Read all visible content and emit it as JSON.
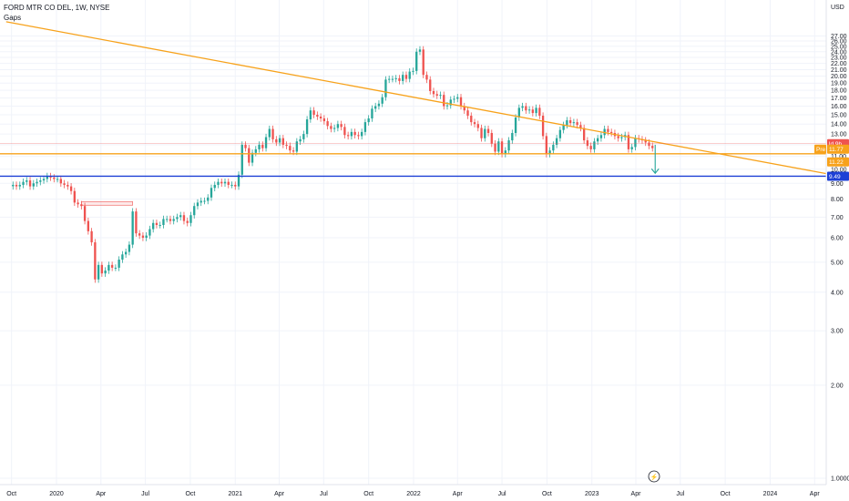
{
  "header": {
    "symbol_line": "FORD MTR CO DEL, 1W, NYSE",
    "indicator": "Gaps"
  },
  "colors": {
    "up": "#26a69a",
    "down": "#ef5350",
    "trendline": "#f7a21b",
    "support": "#f7a21b",
    "level": "#1e40d6",
    "grid": "#f0f3fa"
  },
  "labels": {
    "lightning_icon": "⚡",
    "badge_red_text": "ld 9h",
    "badge_pre_label": "Pre",
    "badge_pre_value": "11.77",
    "badge_support_value": "11.22",
    "badge_level_value": "9.49"
  },
  "chart_data": {
    "type": "candlestick",
    "title": "FORD MTR CO DEL, 1W, NYSE",
    "y_axis_unit": "USD",
    "y_scale": "log",
    "ylim": [
      0.9,
      28.5
    ],
    "y_ticks": [
      "1.0000",
      "2.00",
      "3.00",
      "4.00",
      "5.00",
      "6.00",
      "7.00",
      "8.00",
      "9.00",
      "10.00",
      "11.00",
      "12.00",
      "13.00",
      "14.00",
      "15.00",
      "16.00",
      "17.00",
      "18.00",
      "19.00",
      "20.00",
      "21.00",
      "22.00",
      "23.00",
      "24.00",
      "25.00",
      "26.00",
      "27.00"
    ],
    "x_ticks": [
      "Oct",
      "2020",
      "Apr",
      "Jul",
      "Oct",
      "2021",
      "Apr",
      "Jul",
      "Oct",
      "2022",
      "Apr",
      "Jul",
      "Oct",
      "2023",
      "Apr",
      "Jul",
      "Oct",
      "2024",
      "Apr"
    ],
    "series": [
      {
        "points": [
          [
            "2019-10-04",
            8.9
          ],
          [
            "2019-10-11",
            8.8
          ],
          [
            "2019-10-18",
            8.9
          ],
          [
            "2019-10-25",
            9.1
          ],
          [
            "2019-11-01",
            9.2
          ],
          [
            "2019-11-08",
            8.8
          ],
          [
            "2019-11-15",
            9.0
          ],
          [
            "2019-11-22",
            9.1
          ],
          [
            "2019-11-29",
            9.2
          ],
          [
            "2019-12-06",
            9.3
          ],
          [
            "2019-12-13",
            9.5
          ],
          [
            "2019-12-20",
            9.4
          ],
          [
            "2019-12-27",
            9.3
          ],
          [
            "2020-01-03",
            9.3
          ],
          [
            "2020-01-10",
            9.0
          ],
          [
            "2020-01-17",
            8.9
          ],
          [
            "2020-01-24",
            8.8
          ],
          [
            "2020-01-31",
            8.5
          ],
          [
            "2020-02-07",
            7.8
          ],
          [
            "2020-02-14",
            7.7
          ],
          [
            "2020-02-21",
            7.6
          ],
          [
            "2020-02-28",
            6.8
          ],
          [
            "2020-03-06",
            6.3
          ],
          [
            "2020-03-13",
            5.8
          ],
          [
            "2020-03-20",
            4.4
          ],
          [
            "2020-03-27",
            4.9
          ],
          [
            "2020-04-03",
            4.6
          ],
          [
            "2020-04-10",
            4.7
          ],
          [
            "2020-04-17",
            4.9
          ],
          [
            "2020-04-24",
            4.8
          ],
          [
            "2020-05-01",
            4.8
          ],
          [
            "2020-05-08",
            5.1
          ],
          [
            "2020-05-15",
            5.3
          ],
          [
            "2020-05-22",
            5.4
          ],
          [
            "2020-05-29",
            5.7
          ],
          [
            "2020-06-05",
            7.3
          ],
          [
            "2020-06-12",
            6.2
          ],
          [
            "2020-06-19",
            6.1
          ],
          [
            "2020-06-26",
            6.0
          ],
          [
            "2020-07-03",
            6.1
          ],
          [
            "2020-07-10",
            6.4
          ],
          [
            "2020-07-17",
            6.7
          ],
          [
            "2020-07-24",
            6.6
          ],
          [
            "2020-07-31",
            6.6
          ],
          [
            "2020-08-07",
            6.9
          ],
          [
            "2020-08-14",
            6.9
          ],
          [
            "2020-08-21",
            6.8
          ],
          [
            "2020-08-28",
            6.9
          ],
          [
            "2020-09-04",
            7.0
          ],
          [
            "2020-09-11",
            7.1
          ],
          [
            "2020-09-18",
            6.8
          ],
          [
            "2020-09-25",
            6.7
          ],
          [
            "2020-10-02",
            7.1
          ],
          [
            "2020-10-09",
            7.6
          ],
          [
            "2020-10-16",
            7.8
          ],
          [
            "2020-10-23",
            7.9
          ],
          [
            "2020-10-30",
            7.9
          ],
          [
            "2020-11-06",
            8.1
          ],
          [
            "2020-11-13",
            8.7
          ],
          [
            "2020-11-20",
            8.9
          ],
          [
            "2020-11-27",
            9.1
          ],
          [
            "2020-12-04",
            9.0
          ],
          [
            "2020-12-11",
            9.1
          ],
          [
            "2020-12-18",
            8.9
          ],
          [
            "2020-12-25",
            8.9
          ],
          [
            "2021-01-01",
            8.8
          ],
          [
            "2021-01-08",
            9.6
          ],
          [
            "2021-01-15",
            12.0
          ],
          [
            "2021-01-22",
            11.7
          ],
          [
            "2021-01-29",
            10.5
          ],
          [
            "2021-02-05",
            11.3
          ],
          [
            "2021-02-12",
            11.6
          ],
          [
            "2021-02-19",
            12.0
          ],
          [
            "2021-02-26",
            11.7
          ],
          [
            "2021-03-05",
            12.7
          ],
          [
            "2021-03-12",
            13.5
          ],
          [
            "2021-03-19",
            12.5
          ],
          [
            "2021-03-26",
            12.2
          ],
          [
            "2021-04-02",
            12.6
          ],
          [
            "2021-04-09",
            12.0
          ],
          [
            "2021-04-16",
            11.9
          ],
          [
            "2021-04-23",
            11.5
          ],
          [
            "2021-04-30",
            11.4
          ],
          [
            "2021-05-07",
            12.3
          ],
          [
            "2021-05-14",
            12.5
          ],
          [
            "2021-05-21",
            13.0
          ],
          [
            "2021-05-28",
            14.5
          ],
          [
            "2021-06-04",
            15.5
          ],
          [
            "2021-06-11",
            15.0
          ],
          [
            "2021-06-18",
            14.8
          ],
          [
            "2021-06-25",
            14.6
          ],
          [
            "2021-07-02",
            14.3
          ],
          [
            "2021-07-09",
            13.8
          ],
          [
            "2021-07-16",
            13.5
          ],
          [
            "2021-07-23",
            13.6
          ],
          [
            "2021-07-30",
            14.0
          ],
          [
            "2021-08-06",
            13.7
          ],
          [
            "2021-08-13",
            12.9
          ],
          [
            "2021-08-20",
            12.8
          ],
          [
            "2021-08-27",
            13.2
          ],
          [
            "2021-09-03",
            12.9
          ],
          [
            "2021-09-10",
            12.8
          ],
          [
            "2021-09-17",
            13.2
          ],
          [
            "2021-09-24",
            14.2
          ],
          [
            "2021-10-01",
            14.6
          ],
          [
            "2021-10-08",
            15.7
          ],
          [
            "2021-10-15",
            16.0
          ],
          [
            "2021-10-22",
            16.3
          ],
          [
            "2021-10-29",
            17.1
          ],
          [
            "2021-11-05",
            19.5
          ],
          [
            "2021-11-12",
            19.6
          ],
          [
            "2021-11-19",
            19.6
          ],
          [
            "2021-11-26",
            19.7
          ],
          [
            "2021-12-03",
            19.3
          ],
          [
            "2021-12-10",
            20.2
          ],
          [
            "2021-12-17",
            19.6
          ],
          [
            "2021-12-24",
            20.7
          ],
          [
            "2021-12-31",
            20.8
          ],
          [
            "2022-01-07",
            24.0
          ],
          [
            "2022-01-14",
            24.4
          ],
          [
            "2022-01-21",
            20.2
          ],
          [
            "2022-01-28",
            19.5
          ],
          [
            "2022-02-04",
            17.9
          ],
          [
            "2022-02-11",
            17.5
          ],
          [
            "2022-02-18",
            17.3
          ],
          [
            "2022-02-25",
            17.4
          ],
          [
            "2022-03-04",
            16.0
          ],
          [
            "2022-03-11",
            16.1
          ],
          [
            "2022-03-18",
            16.8
          ],
          [
            "2022-03-25",
            16.9
          ],
          [
            "2022-04-01",
            17.1
          ],
          [
            "2022-04-08",
            16.0
          ],
          [
            "2022-04-15",
            15.5
          ],
          [
            "2022-04-22",
            14.9
          ],
          [
            "2022-04-29",
            14.2
          ],
          [
            "2022-05-06",
            14.0
          ],
          [
            "2022-05-13",
            13.6
          ],
          [
            "2022-05-20",
            12.6
          ],
          [
            "2022-05-27",
            13.5
          ],
          [
            "2022-06-03",
            13.1
          ],
          [
            "2022-06-10",
            12.1
          ],
          [
            "2022-06-17",
            11.4
          ],
          [
            "2022-06-24",
            12.3
          ],
          [
            "2022-07-01",
            11.2
          ],
          [
            "2022-07-08",
            11.5
          ],
          [
            "2022-07-15",
            12.4
          ],
          [
            "2022-07-22",
            13.1
          ],
          [
            "2022-07-29",
            14.7
          ],
          [
            "2022-08-05",
            15.8
          ],
          [
            "2022-08-12",
            16.0
          ],
          [
            "2022-08-19",
            15.5
          ],
          [
            "2022-08-26",
            15.6
          ],
          [
            "2022-09-02",
            15.2
          ],
          [
            "2022-09-09",
            15.8
          ],
          [
            "2022-09-16",
            14.9
          ],
          [
            "2022-09-23",
            12.8
          ],
          [
            "2022-09-30",
            11.2
          ],
          [
            "2022-10-07",
            11.5
          ],
          [
            "2022-10-14",
            12.0
          ],
          [
            "2022-10-21",
            12.6
          ],
          [
            "2022-10-28",
            13.4
          ],
          [
            "2022-11-04",
            13.9
          ],
          [
            "2022-11-11",
            14.4
          ],
          [
            "2022-11-18",
            14.1
          ],
          [
            "2022-11-25",
            14.2
          ],
          [
            "2022-12-02",
            13.9
          ],
          [
            "2022-12-09",
            13.6
          ],
          [
            "2022-12-16",
            12.4
          ],
          [
            "2022-12-23",
            11.9
          ],
          [
            "2022-12-30",
            11.6
          ],
          [
            "2023-01-06",
            12.3
          ],
          [
            "2023-01-13",
            12.6
          ],
          [
            "2023-01-20",
            12.9
          ],
          [
            "2023-01-27",
            13.5
          ],
          [
            "2023-02-03",
            13.2
          ],
          [
            "2023-02-10",
            13.1
          ],
          [
            "2023-02-17",
            12.8
          ],
          [
            "2023-02-24",
            12.6
          ],
          [
            "2023-03-03",
            12.7
          ],
          [
            "2023-03-10",
            12.9
          ],
          [
            "2023-03-17",
            11.6
          ],
          [
            "2023-03-24",
            11.8
          ],
          [
            "2023-03-31",
            12.6
          ],
          [
            "2023-04-07",
            12.5
          ],
          [
            "2023-04-14",
            12.4
          ],
          [
            "2023-04-21",
            12.2
          ],
          [
            "2023-04-28",
            11.9
          ],
          [
            "2023-05-05",
            11.7
          ]
        ]
      }
    ],
    "annotations": {
      "trendline_from": [
        "2019-09-20",
        30.0
      ],
      "trendline_through": [
        "2023-05-05",
        12.3
      ],
      "support_level": 11.22,
      "horizontal_level": 9.49,
      "gap_zone": [
        7.65,
        7.85
      ],
      "arrow_target": 9.7
    }
  }
}
